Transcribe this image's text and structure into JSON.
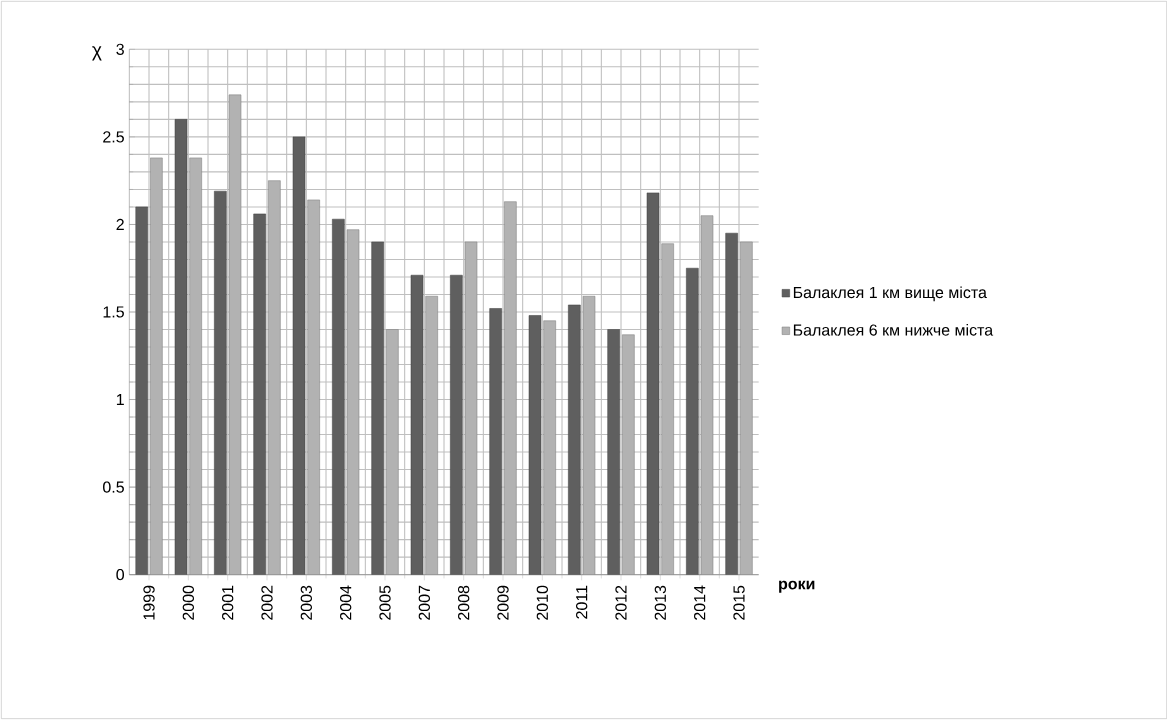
{
  "chart_data": {
    "type": "bar",
    "ylabel": "χ",
    "xlabel": "роки",
    "categories": [
      "1999",
      "2000",
      "2001",
      "2002",
      "2003",
      "2004",
      "2005",
      "2007",
      "2008",
      "2009",
      "2010",
      "2011",
      "2012",
      "2013",
      "2014",
      "2015"
    ],
    "series": [
      {
        "name": "Балаклея 1 км вище міста",
        "color": "#5f5f5f",
        "values": [
          2.1,
          2.6,
          2.19,
          2.06,
          2.5,
          2.03,
          1.9,
          1.71,
          1.71,
          1.52,
          1.48,
          1.54,
          1.4,
          2.18,
          1.75,
          1.95
        ]
      },
      {
        "name": "Балаклея 6 км нижче міста",
        "color": "#b2b2b2",
        "values": [
          2.38,
          2.38,
          2.74,
          2.25,
          2.14,
          1.97,
          1.4,
          1.59,
          1.9,
          2.13,
          1.45,
          1.59,
          1.37,
          1.89,
          2.05,
          1.9
        ]
      }
    ],
    "ylim": [
      0,
      3
    ],
    "yticks": [
      0,
      0.5,
      1,
      1.5,
      2,
      2.5,
      3
    ],
    "grid": true,
    "legend": "right"
  }
}
